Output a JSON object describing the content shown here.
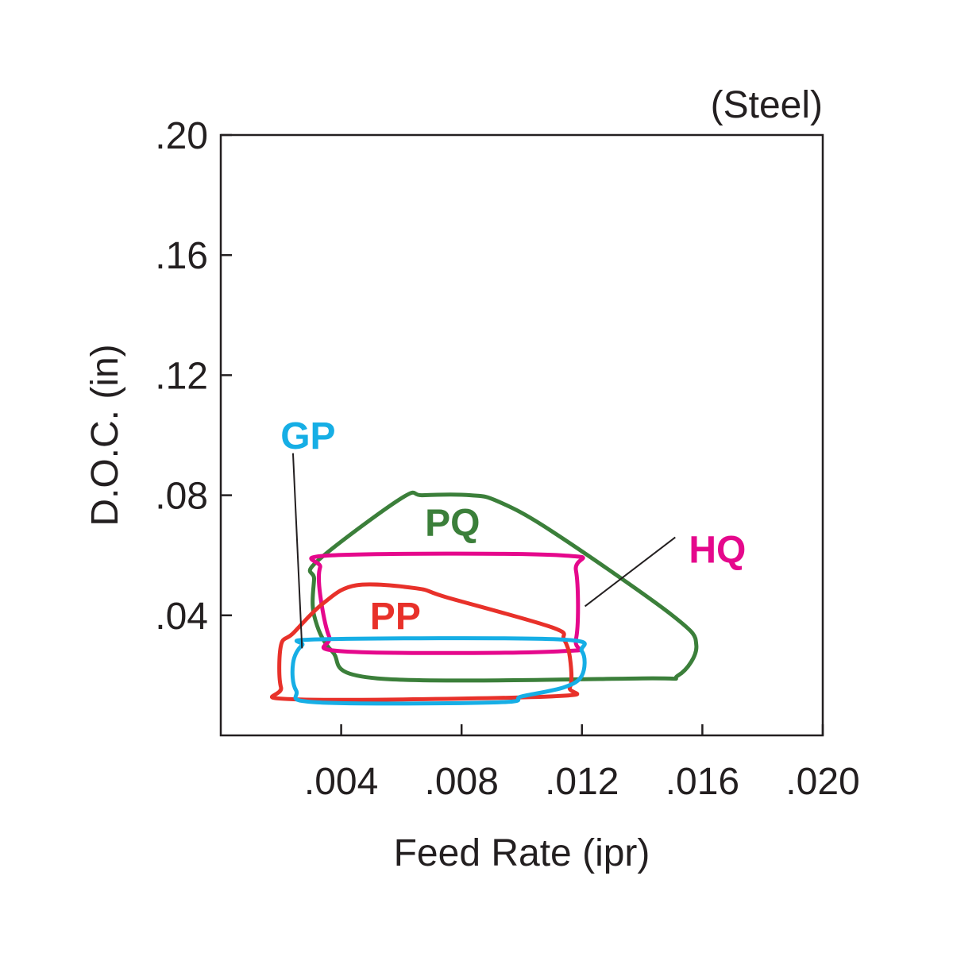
{
  "chart_data": {
    "type": "area",
    "title": "(Steel)",
    "xlabel": "Feed Rate (ipr)",
    "ylabel": "D.O.C. (in)",
    "xlim": [
      0,
      0.02
    ],
    "ylim": [
      0,
      0.2
    ],
    "x_ticks": [
      0.004,
      0.008,
      0.012,
      0.016,
      0.02
    ],
    "x_tick_labels": [
      ".004",
      ".008",
      ".012",
      ".016",
      ".020"
    ],
    "y_ticks": [
      0.04,
      0.08,
      0.12,
      0.16,
      0.2
    ],
    "y_tick_labels": [
      ".04",
      ".08",
      ".12",
      ".16",
      ".20"
    ],
    "grid": false,
    "series": [
      {
        "name": "PQ",
        "color": "#3b7f3a",
        "points": [
          [
            0.0032,
            0.058
          ],
          [
            0.006,
            0.079
          ],
          [
            0.0067,
            0.08
          ],
          [
            0.0083,
            0.08
          ],
          [
            0.0092,
            0.078
          ],
          [
            0.011,
            0.068
          ],
          [
            0.015,
            0.04
          ],
          [
            0.0158,
            0.03
          ],
          [
            0.0152,
            0.02
          ],
          [
            0.014,
            0.019
          ],
          [
            0.0052,
            0.019
          ],
          [
            0.0037,
            0.028
          ],
          [
            0.0031,
            0.04
          ],
          [
            0.0031,
            0.052
          ]
        ]
      },
      {
        "name": "HQ",
        "color": "#e5088c",
        "points": [
          [
            0.0037,
            0.06
          ],
          [
            0.0113,
            0.06
          ],
          [
            0.0118,
            0.055
          ],
          [
            0.0118,
            0.032
          ],
          [
            0.0112,
            0.028
          ],
          [
            0.0041,
            0.028
          ],
          [
            0.0036,
            0.033
          ],
          [
            0.0033,
            0.047
          ],
          [
            0.0033,
            0.056
          ]
        ]
      },
      {
        "name": "PP",
        "color": "#e8312a",
        "points": [
          [
            0.0045,
            0.05
          ],
          [
            0.0065,
            0.049
          ],
          [
            0.0075,
            0.046
          ],
          [
            0.011,
            0.036
          ],
          [
            0.0114,
            0.032
          ],
          [
            0.0116,
            0.026
          ],
          [
            0.0116,
            0.016
          ],
          [
            0.011,
            0.013
          ],
          [
            0.0025,
            0.012
          ],
          [
            0.002,
            0.016
          ],
          [
            0.002,
            0.03
          ],
          [
            0.0024,
            0.034
          ],
          [
            0.0034,
            0.044
          ]
        ]
      },
      {
        "name": "GP",
        "color": "#16aee5",
        "points": [
          [
            0.0033,
            0.032
          ],
          [
            0.0112,
            0.032
          ],
          [
            0.012,
            0.028
          ],
          [
            0.012,
            0.02
          ],
          [
            0.0114,
            0.016
          ],
          [
            0.01,
            0.013
          ],
          [
            0.0092,
            0.011
          ],
          [
            0.0032,
            0.011
          ],
          [
            0.0025,
            0.015
          ],
          [
            0.0024,
            0.024
          ],
          [
            0.0027,
            0.03
          ]
        ]
      }
    ],
    "labels": [
      {
        "text": "PQ",
        "color": "#3b7f3a",
        "x": 0.0077,
        "y": 0.071
      },
      {
        "text": "HQ",
        "color": "#e5088c",
        "x": 0.0165,
        "y": 0.062
      },
      {
        "text": "PP",
        "color": "#e8312a",
        "x": 0.0058,
        "y": 0.04
      },
      {
        "text": "GP",
        "color": "#16aee5",
        "x": 0.0029,
        "y": 0.1
      }
    ],
    "leader_lines": [
      {
        "series": "HQ",
        "from": [
          0.0151,
          0.066
        ],
        "to": [
          0.0121,
          0.043
        ]
      },
      {
        "series": "GP",
        "from": [
          0.0024,
          0.094
        ],
        "to": [
          0.0027,
          0.029
        ]
      }
    ]
  }
}
